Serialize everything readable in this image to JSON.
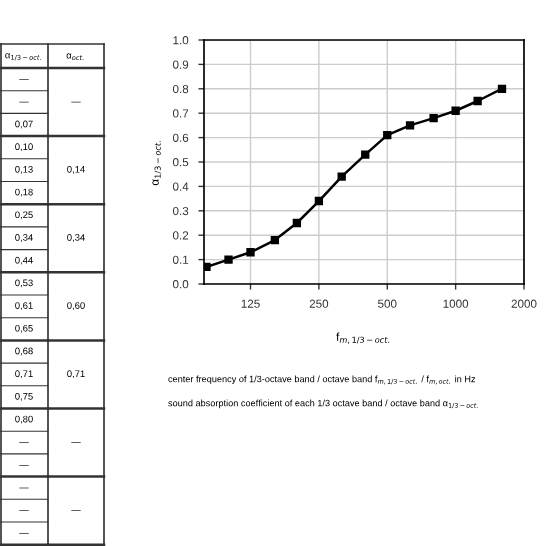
{
  "chart_data": {
    "type": "line",
    "xlabel": "f$_{m,1/3−oct.}$",
    "ylabel": "α$_{1/3−oct.}$",
    "x": [
      80,
      100,
      125,
      160,
      200,
      250,
      315,
      400,
      500,
      630,
      800,
      1000,
      1250,
      1600
    ],
    "series": [
      {
        "color": "#000000",
        "values": [
          0.07,
          0.1,
          0.13,
          0.18,
          0.25,
          0.34,
          0.44,
          0.53,
          0.61,
          0.65,
          0.68,
          0.71,
          0.75,
          0.8
        ]
      }
    ],
    "log": "x",
    "xlim": [
      78,
      2000
    ],
    "xticks": [
      125,
      250,
      500,
      1000,
      2000
    ],
    "ylim": [
      0,
      1.0
    ],
    "yticks": [
      {
        "value": 0,
        "label": "0.0"
      },
      0.1,
      0.2,
      0.3,
      0.4,
      0.5,
      0.6,
      0.7,
      0.8,
      0.9,
      {
        "value": 1.0,
        "label": "1.0"
      }
    ],
    "grid": true,
    "marker": "square",
    "line_style": "solid",
    "annotations": [
      "α$_{1/3−oct.}$",
      "α$_{oct.}$",
      "—",
      "—",
      "0,07",
      "0,10",
      "0,13",
      "0,18",
      "0,25",
      "0,34",
      "0,44",
      "0,53",
      "0,61",
      "0,65",
      "0,68",
      "0,71",
      "0,75",
      "0,80",
      "—",
      "—",
      "—",
      "—",
      "—",
      "—",
      "0,14",
      "0,34",
      "0,60",
      "0,71",
      "—",
      "—",
      "center frequency of 1/3-octave band / octave band f$_{m,1/3−oct.}$ / f$_{m,oct.}$ in Hz",
      "sound absorption coefficient of each 1/3 octave band / octave band α$_{1/3−oct.}$"
    ]
  }
}
